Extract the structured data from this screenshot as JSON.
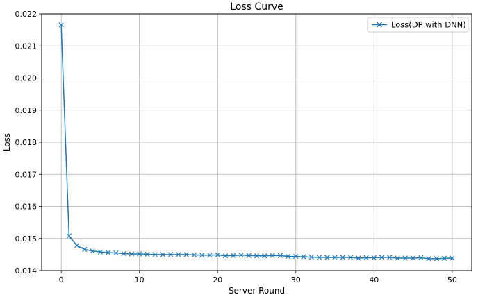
{
  "chart_data": {
    "type": "line",
    "title": "Loss Curve",
    "xlabel": "Server Round",
    "ylabel": "Loss",
    "xlim": [
      -2.5,
      52.5
    ],
    "ylim": [
      0.014,
      0.022
    ],
    "xticks": [
      0,
      10,
      20,
      30,
      40,
      50
    ],
    "yticks": [
      0.014,
      0.015,
      0.016,
      0.017,
      0.018,
      0.019,
      0.02,
      0.021,
      0.022
    ],
    "ytick_labels": [
      "0.014",
      "0.015",
      "0.016",
      "0.017",
      "0.018",
      "0.019",
      "0.020",
      "0.021",
      "0.022"
    ],
    "grid": true,
    "legend_position": "top-right",
    "series": [
      {
        "name": "Loss(DP with DNN)",
        "color": "#1f77b4",
        "marker": "x",
        "x": [
          0,
          1,
          2,
          3,
          4,
          5,
          6,
          7,
          8,
          9,
          10,
          11,
          12,
          13,
          14,
          15,
          16,
          17,
          18,
          19,
          20,
          21,
          22,
          23,
          24,
          25,
          26,
          27,
          28,
          29,
          30,
          31,
          32,
          33,
          34,
          35,
          36,
          37,
          38,
          39,
          40,
          41,
          42,
          43,
          44,
          45,
          46,
          47,
          48,
          49,
          50
        ],
        "y": [
          0.02166,
          0.01508,
          0.01478,
          0.01466,
          0.01461,
          0.01458,
          0.01456,
          0.01455,
          0.01453,
          0.01452,
          0.01452,
          0.01451,
          0.0145,
          0.0145,
          0.0145,
          0.0145,
          0.0145,
          0.01449,
          0.01448,
          0.01448,
          0.01449,
          0.01446,
          0.01447,
          0.01448,
          0.01447,
          0.01446,
          0.01446,
          0.01447,
          0.01447,
          0.01444,
          0.01444,
          0.01443,
          0.01442,
          0.01441,
          0.01441,
          0.01441,
          0.01441,
          0.01441,
          0.01439,
          0.0144,
          0.0144,
          0.01441,
          0.01441,
          0.01439,
          0.01439,
          0.01439,
          0.0144,
          0.01437,
          0.01437,
          0.01438,
          0.01439
        ]
      }
    ]
  }
}
